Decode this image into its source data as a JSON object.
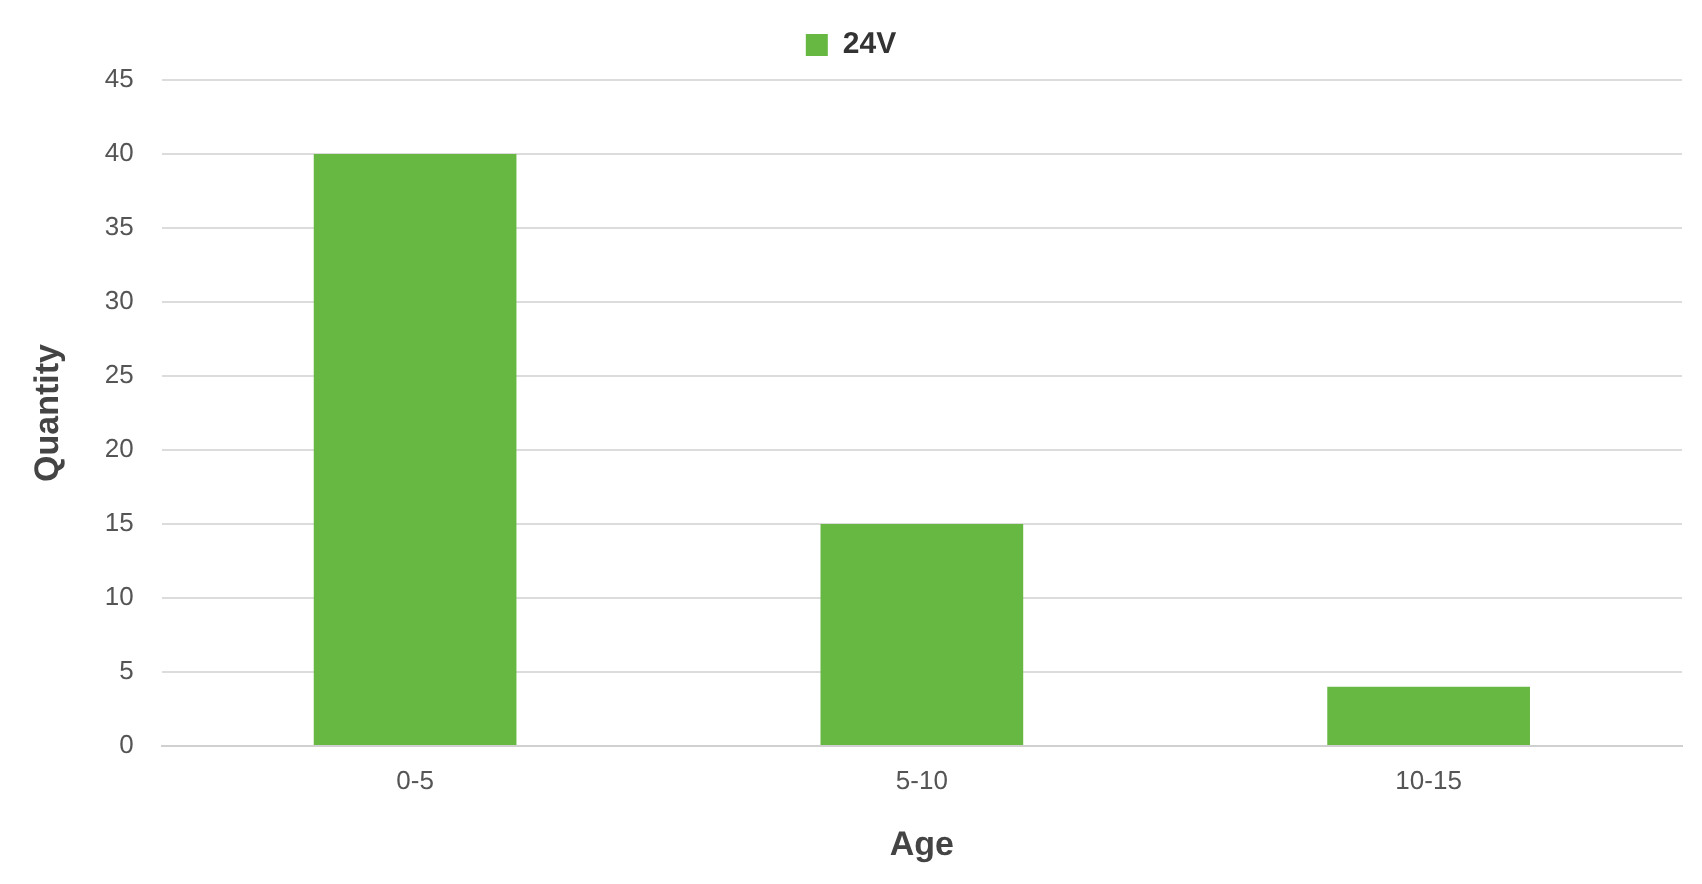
{
  "chart_data": {
    "type": "bar",
    "xlabel": "Age",
    "ylabel": "Quantity",
    "categories": [
      "0-5",
      "5-10",
      "10-15"
    ],
    "series": [
      {
        "name": "24V",
        "color": "#67b843",
        "values": [
          40,
          15,
          4
        ]
      }
    ],
    "ylim": [
      0,
      45
    ],
    "yticks": [
      0,
      5,
      10,
      15,
      20,
      25,
      30,
      35,
      40,
      45
    ],
    "grid": "y",
    "legend": "top"
  }
}
